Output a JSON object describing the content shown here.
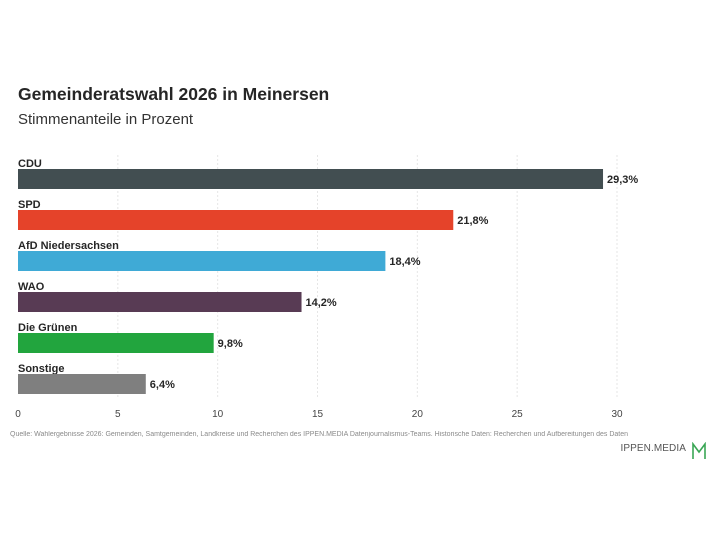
{
  "header": {
    "title": "Gemeinderatswahl 2026 in Meinersen",
    "subtitle": "Stimmenanteile in Prozent"
  },
  "footer": {
    "source": "Quelle: Wahlergebnisse 2026: Gemeinden, Samtgemeinden, Landkreise und Recherchen des IPPEN.MEDIA Datenjournalismus-Teams. Historische Daten: Recherchen und Aufbereitungen des Daten",
    "brand": "IPPEN.MEDIA",
    "brand_logo": "m-logo-icon"
  },
  "chart_data": {
    "type": "bar",
    "orientation": "horizontal",
    "title": "Gemeinderatswahl 2026 in Meinersen",
    "subtitle": "Stimmenanteile in Prozent",
    "categories": [
      "CDU",
      "SPD",
      "AfD Niedersachsen",
      "WAO",
      "Die Grünen",
      "Sonstige"
    ],
    "values": [
      29.3,
      21.8,
      18.4,
      14.2,
      9.8,
      6.4
    ],
    "value_labels": [
      "29,3%",
      "21,8%",
      "18,4%",
      "14,2%",
      "9,8%",
      "6,4%"
    ],
    "colors": [
      "#424e51",
      "#e5432a",
      "#3faad6",
      "#583b54",
      "#22a53e",
      "#7f7f7f"
    ],
    "xlim": [
      0,
      30
    ],
    "xticks": [
      0,
      5,
      10,
      15,
      20,
      25,
      30
    ],
    "xtick_labels": [
      "0",
      "5",
      "10",
      "15",
      "20",
      "25",
      "30"
    ],
    "grid": true,
    "xlabel": "",
    "ylabel": ""
  }
}
